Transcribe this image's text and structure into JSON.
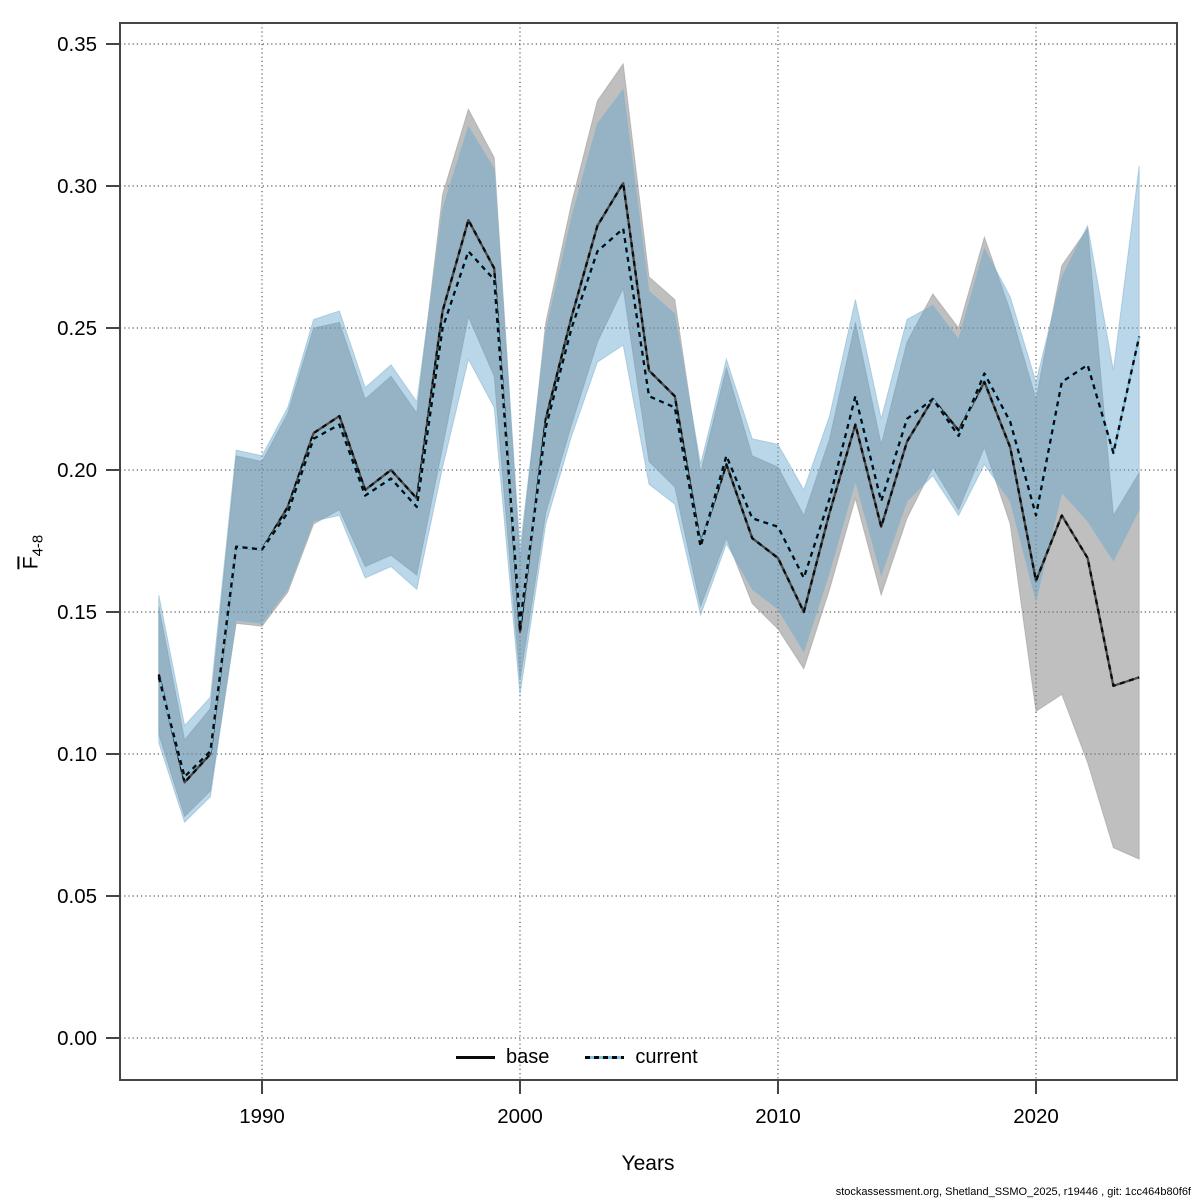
{
  "page": {
    "background": "#ffffff"
  },
  "chart_data": {
    "type": "line",
    "title": "",
    "xlabel": "Years",
    "ylabel": {
      "main": "F",
      "sub": "4-8",
      "overline": true,
      "display": "F̄4-8"
    },
    "grid": true,
    "grid_color": "#5a5a5a",
    "frame_color": "#454545",
    "ylim": [
      0.0,
      0.35
    ],
    "xticks": [
      1990,
      2000,
      2010,
      2020
    ],
    "yticks": [
      "0.00",
      "0.05",
      "0.10",
      "0.15",
      "0.20",
      "0.25",
      "0.30",
      "0.35"
    ],
    "x": [
      1986,
      1987,
      1988,
      1989,
      1990,
      1991,
      1992,
      1993,
      1994,
      1995,
      1996,
      1997,
      1998,
      1999,
      2000,
      2001,
      2002,
      2003,
      2004,
      2005,
      2006,
      2007,
      2008,
      2009,
      2010,
      2011,
      2012,
      2013,
      2014,
      2015,
      2016,
      2017,
      2018,
      2019,
      2020,
      2021,
      2022,
      2023,
      2024
    ],
    "series": [
      {
        "name": "base",
        "line_style": "solid",
        "line_under_color": "#4a4a4a",
        "line_dash_color": "#0a0a0a",
        "band_color": "#787878",
        "band_edge_color": "#9a9a9a",
        "band_opacity": 0.47,
        "values": [
          0.128,
          0.09,
          0.1,
          0.173,
          0.172,
          0.187,
          0.213,
          0.219,
          0.193,
          0.2,
          0.19,
          0.256,
          0.288,
          0.271,
          0.143,
          0.218,
          0.254,
          0.286,
          0.301,
          0.235,
          0.226,
          0.174,
          0.202,
          0.176,
          0.169,
          0.15,
          0.185,
          0.216,
          0.18,
          0.21,
          0.225,
          0.214,
          0.231,
          0.208,
          0.161,
          0.184,
          0.169,
          0.124,
          0.127
        ],
        "ci_lower": [
          0.107,
          0.078,
          0.087,
          0.146,
          0.145,
          0.157,
          0.181,
          0.186,
          0.166,
          0.17,
          0.163,
          0.208,
          0.254,
          0.233,
          0.126,
          0.185,
          0.216,
          0.245,
          0.264,
          0.203,
          0.194,
          0.152,
          0.176,
          0.153,
          0.144,
          0.13,
          0.158,
          0.19,
          0.156,
          0.183,
          0.201,
          0.186,
          0.208,
          0.181,
          0.115,
          0.121,
          0.097,
          0.067,
          0.063
        ],
        "ci_upper": [
          0.152,
          0.105,
          0.116,
          0.205,
          0.203,
          0.22,
          0.25,
          0.252,
          0.225,
          0.233,
          0.22,
          0.297,
          0.327,
          0.31,
          0.168,
          0.252,
          0.294,
          0.33,
          0.343,
          0.268,
          0.26,
          0.199,
          0.236,
          0.205,
          0.201,
          0.184,
          0.211,
          0.252,
          0.209,
          0.245,
          0.262,
          0.25,
          0.282,
          0.256,
          0.225,
          0.272,
          0.285,
          0.184,
          0.199
        ]
      },
      {
        "name": "current",
        "line_style": "dashed",
        "line_under_color": "#7fc2e0",
        "line_dash_color": "#0a0a0a",
        "band_color": "#60a4cc",
        "band_edge_color": "#8ab4cc",
        "band_opacity": 0.44,
        "values": [
          0.127,
          0.092,
          0.101,
          0.173,
          0.172,
          0.185,
          0.211,
          0.216,
          0.191,
          0.197,
          0.187,
          0.25,
          0.277,
          0.267,
          0.146,
          0.215,
          0.25,
          0.277,
          0.285,
          0.226,
          0.222,
          0.173,
          0.205,
          0.183,
          0.18,
          0.162,
          0.19,
          0.226,
          0.189,
          0.218,
          0.225,
          0.212,
          0.234,
          0.217,
          0.184,
          0.231,
          0.237,
          0.206,
          0.247
        ],
        "ci_lower": [
          0.104,
          0.076,
          0.085,
          0.147,
          0.146,
          0.158,
          0.182,
          0.184,
          0.162,
          0.166,
          0.158,
          0.201,
          0.239,
          0.222,
          0.121,
          0.181,
          0.212,
          0.238,
          0.244,
          0.195,
          0.188,
          0.149,
          0.174,
          0.158,
          0.151,
          0.136,
          0.164,
          0.196,
          0.163,
          0.189,
          0.198,
          0.184,
          0.202,
          0.189,
          0.154,
          0.192,
          0.182,
          0.168,
          0.186
        ],
        "ci_upper": [
          0.156,
          0.11,
          0.12,
          0.207,
          0.205,
          0.222,
          0.253,
          0.256,
          0.229,
          0.237,
          0.224,
          0.292,
          0.321,
          0.306,
          0.172,
          0.249,
          0.289,
          0.322,
          0.334,
          0.263,
          0.255,
          0.202,
          0.239,
          0.211,
          0.209,
          0.193,
          0.219,
          0.26,
          0.218,
          0.253,
          0.258,
          0.246,
          0.278,
          0.261,
          0.231,
          0.268,
          0.286,
          0.235,
          0.307
        ]
      }
    ],
    "legend": {
      "position": "bottom-center",
      "items": [
        {
          "label": "base",
          "sample": "solid-black"
        },
        {
          "label": "current",
          "sample": "dashed-blue"
        }
      ]
    }
  },
  "footer": {
    "text": "stockassessment.org, Shetland_SSMO_2025, r19446 , git: 1cc464b80f6f"
  }
}
